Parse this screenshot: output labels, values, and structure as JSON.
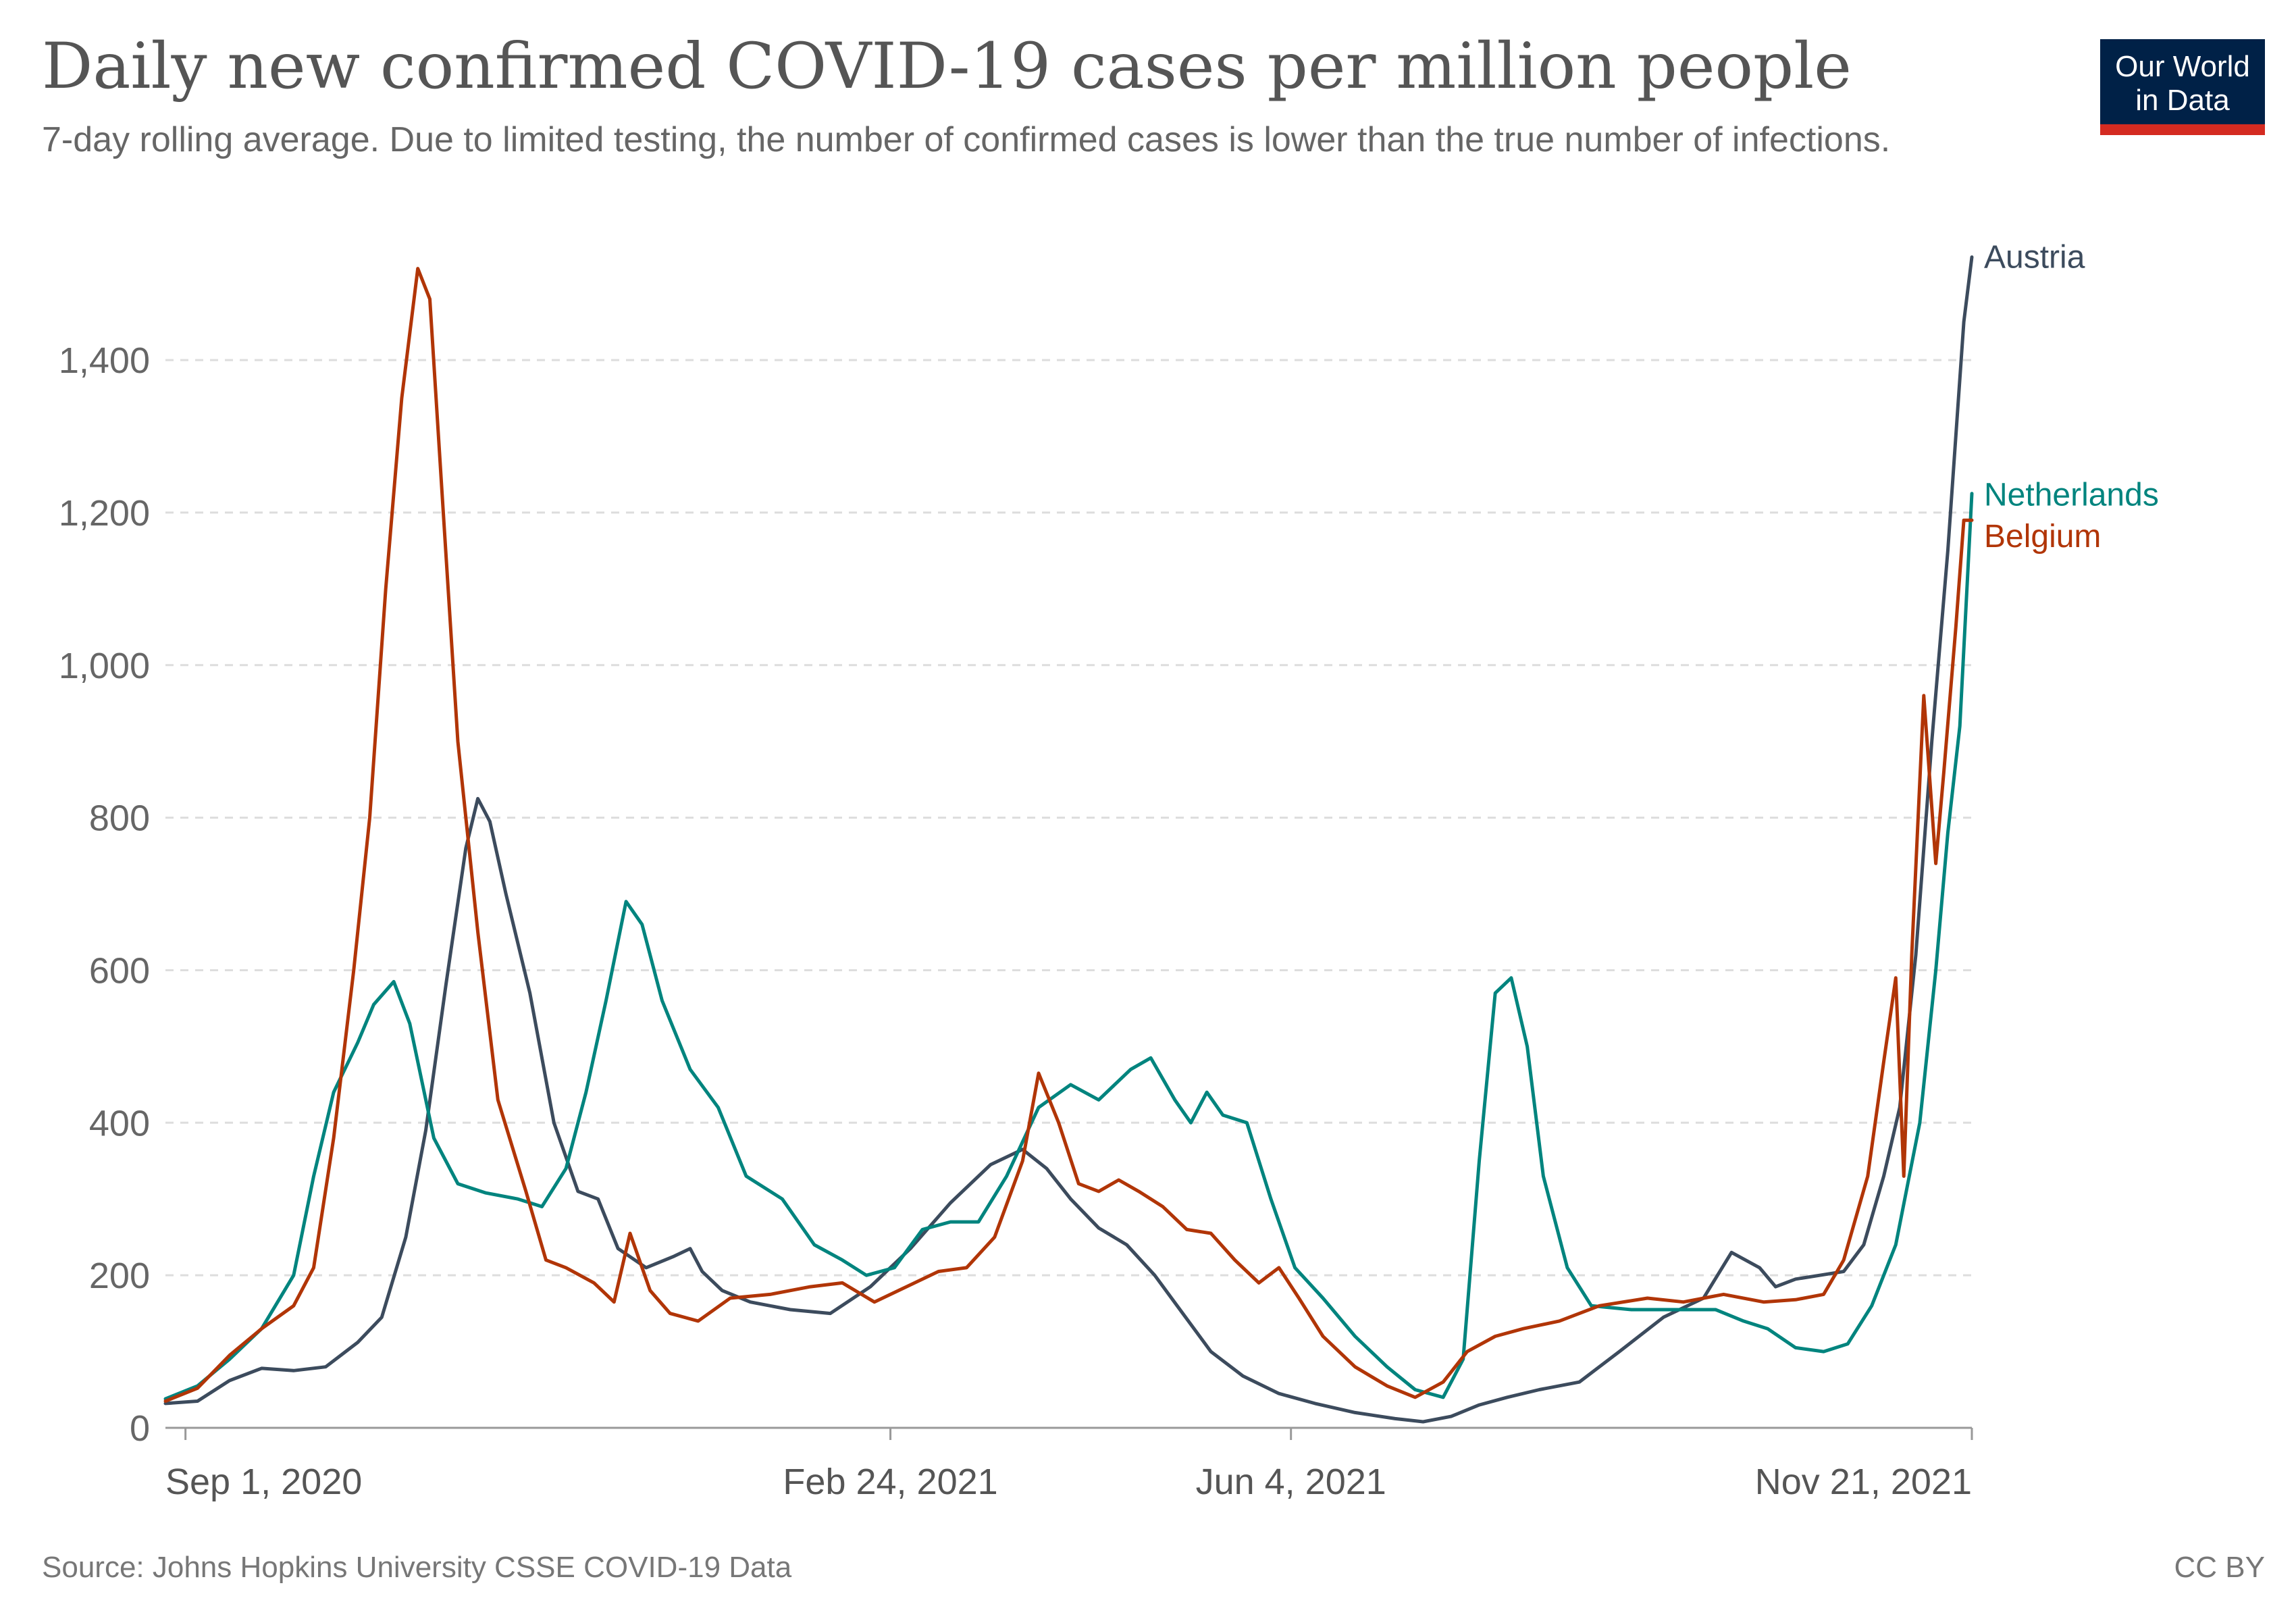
{
  "logo": {
    "line1": "Our World",
    "line2": "in Data"
  },
  "footer": {
    "source": "Source: Johns Hopkins University CSSE COVID-19 Data",
    "license": "CC BY"
  },
  "colors": {
    "Austria": "#3c4b5d",
    "Netherlands": "#00847e",
    "Belgium": "#b13507"
  },
  "chart_data": {
    "type": "line",
    "title": "Daily new confirmed COVID-19 cases per million people",
    "subtitle": "7-day rolling average. Due to limited testing, the number of confirmed cases is lower than the true number of infections.",
    "xlabel": "",
    "ylabel": "",
    "x_range": [
      "2020-08-27",
      "2021-11-21"
    ],
    "ylim": [
      0,
      1540
    ],
    "y_ticks": [
      0,
      200,
      400,
      600,
      800,
      1000,
      1200,
      1400
    ],
    "y_tick_labels": [
      "0",
      "200",
      "400",
      "600",
      "800",
      "1,000",
      "1,200",
      "1,400"
    ],
    "x_ticks": [
      {
        "date": "2020-09-01",
        "label": "Sep 1, 2020"
      },
      {
        "date": "2021-02-24",
        "label": "Feb 24, 2021"
      },
      {
        "date": "2021-06-04",
        "label": "Jun 4, 2021"
      },
      {
        "date": "2021-11-21",
        "label": "Nov 21, 2021"
      }
    ],
    "grid": true,
    "legend": "end-of-line labels",
    "series": [
      {
        "name": "Austria",
        "points": [
          [
            "2020-08-27",
            32
          ],
          [
            "2020-09-04",
            35
          ],
          [
            "2020-09-12",
            62
          ],
          [
            "2020-09-20",
            78
          ],
          [
            "2020-09-28",
            75
          ],
          [
            "2020-10-06",
            80
          ],
          [
            "2020-10-14",
            112
          ],
          [
            "2020-10-20",
            145
          ],
          [
            "2020-10-26",
            250
          ],
          [
            "2020-10-31",
            390
          ],
          [
            "2020-11-05",
            580
          ],
          [
            "2020-11-10",
            760
          ],
          [
            "2020-11-13",
            825
          ],
          [
            "2020-11-16",
            795
          ],
          [
            "2020-11-20",
            700
          ],
          [
            "2020-11-26",
            570
          ],
          [
            "2020-12-02",
            400
          ],
          [
            "2020-12-08",
            310
          ],
          [
            "2020-12-13",
            300
          ],
          [
            "2020-12-18",
            235
          ],
          [
            "2020-12-25",
            210
          ],
          [
            "2021-01-01",
            225
          ],
          [
            "2021-01-05",
            235
          ],
          [
            "2021-01-08",
            205
          ],
          [
            "2021-01-13",
            180
          ],
          [
            "2021-01-20",
            165
          ],
          [
            "2021-01-30",
            155
          ],
          [
            "2021-02-09",
            150
          ],
          [
            "2021-02-19",
            185
          ],
          [
            "2021-03-01",
            235
          ],
          [
            "2021-03-11",
            295
          ],
          [
            "2021-03-21",
            345
          ],
          [
            "2021-03-29",
            365
          ],
          [
            "2021-04-04",
            340
          ],
          [
            "2021-04-10",
            300
          ],
          [
            "2021-04-17",
            262
          ],
          [
            "2021-04-24",
            240
          ],
          [
            "2021-05-01",
            200
          ],
          [
            "2021-05-08",
            150
          ],
          [
            "2021-05-15",
            100
          ],
          [
            "2021-05-23",
            68
          ],
          [
            "2021-06-01",
            45
          ],
          [
            "2021-06-10",
            32
          ],
          [
            "2021-06-20",
            20
          ],
          [
            "2021-06-30",
            12
          ],
          [
            "2021-07-07",
            8
          ],
          [
            "2021-07-14",
            15
          ],
          [
            "2021-07-21",
            30
          ],
          [
            "2021-07-28",
            40
          ],
          [
            "2021-08-05",
            50
          ],
          [
            "2021-08-15",
            60
          ],
          [
            "2021-08-25",
            100
          ],
          [
            "2021-09-05",
            145
          ],
          [
            "2021-09-15",
            170
          ],
          [
            "2021-09-22",
            230
          ],
          [
            "2021-09-29",
            210
          ],
          [
            "2021-10-03",
            185
          ],
          [
            "2021-10-08",
            195
          ],
          [
            "2021-10-14",
            200
          ],
          [
            "2021-10-20",
            205
          ],
          [
            "2021-10-25",
            240
          ],
          [
            "2021-10-30",
            330
          ],
          [
            "2021-11-03",
            420
          ],
          [
            "2021-11-07",
            620
          ],
          [
            "2021-11-11",
            900
          ],
          [
            "2021-11-15",
            1150
          ],
          [
            "2021-11-19",
            1450
          ],
          [
            "2021-11-21",
            1535
          ]
        ]
      },
      {
        "name": "Netherlands",
        "points": [
          [
            "2020-08-27",
            38
          ],
          [
            "2020-09-04",
            55
          ],
          [
            "2020-09-12",
            90
          ],
          [
            "2020-09-20",
            130
          ],
          [
            "2020-09-28",
            200
          ],
          [
            "2020-10-03",
            330
          ],
          [
            "2020-10-08",
            440
          ],
          [
            "2020-10-14",
            505
          ],
          [
            "2020-10-18",
            555
          ],
          [
            "2020-10-23",
            585
          ],
          [
            "2020-10-27",
            530
          ],
          [
            "2020-11-02",
            380
          ],
          [
            "2020-11-08",
            320
          ],
          [
            "2020-11-15",
            308
          ],
          [
            "2020-11-23",
            300
          ],
          [
            "2020-11-29",
            290
          ],
          [
            "2020-12-05",
            340
          ],
          [
            "2020-12-10",
            440
          ],
          [
            "2020-12-15",
            560
          ],
          [
            "2020-12-20",
            690
          ],
          [
            "2020-12-24",
            660
          ],
          [
            "2020-12-29",
            560
          ],
          [
            "2021-01-05",
            470
          ],
          [
            "2021-01-12",
            420
          ],
          [
            "2021-01-19",
            330
          ],
          [
            "2021-01-28",
            300
          ],
          [
            "2021-02-05",
            240
          ],
          [
            "2021-02-12",
            220
          ],
          [
            "2021-02-18",
            200
          ],
          [
            "2021-02-25",
            210
          ],
          [
            "2021-03-04",
            260
          ],
          [
            "2021-03-11",
            270
          ],
          [
            "2021-03-18",
            270
          ],
          [
            "2021-03-25",
            330
          ],
          [
            "2021-04-02",
            420
          ],
          [
            "2021-04-10",
            450
          ],
          [
            "2021-04-17",
            430
          ],
          [
            "2021-04-25",
            470
          ],
          [
            "2021-04-30",
            485
          ],
          [
            "2021-05-06",
            430
          ],
          [
            "2021-05-10",
            400
          ],
          [
            "2021-05-14",
            440
          ],
          [
            "2021-05-18",
            410
          ],
          [
            "2021-05-24",
            400
          ],
          [
            "2021-05-30",
            300
          ],
          [
            "2021-06-05",
            210
          ],
          [
            "2021-06-12",
            170
          ],
          [
            "2021-06-20",
            120
          ],
          [
            "2021-06-28",
            80
          ],
          [
            "2021-07-05",
            50
          ],
          [
            "2021-07-12",
            40
          ],
          [
            "2021-07-17",
            90
          ],
          [
            "2021-07-21",
            350
          ],
          [
            "2021-07-25",
            570
          ],
          [
            "2021-07-29",
            590
          ],
          [
            "2021-08-02",
            500
          ],
          [
            "2021-08-06",
            330
          ],
          [
            "2021-08-12",
            210
          ],
          [
            "2021-08-18",
            160
          ],
          [
            "2021-08-28",
            155
          ],
          [
            "2021-09-08",
            155
          ],
          [
            "2021-09-18",
            155
          ],
          [
            "2021-09-25",
            140
          ],
          [
            "2021-10-01",
            130
          ],
          [
            "2021-10-08",
            105
          ],
          [
            "2021-10-15",
            100
          ],
          [
            "2021-10-21",
            110
          ],
          [
            "2021-10-27",
            160
          ],
          [
            "2021-11-02",
            240
          ],
          [
            "2021-11-08",
            400
          ],
          [
            "2021-11-12",
            600
          ],
          [
            "2021-11-15",
            780
          ],
          [
            "2021-11-18",
            920
          ],
          [
            "2021-11-21",
            1225
          ]
        ]
      },
      {
        "name": "Belgium",
        "points": [
          [
            "2020-08-27",
            35
          ],
          [
            "2020-09-04",
            52
          ],
          [
            "2020-09-12",
            95
          ],
          [
            "2020-09-20",
            130
          ],
          [
            "2020-09-28",
            160
          ],
          [
            "2020-10-03",
            210
          ],
          [
            "2020-10-08",
            380
          ],
          [
            "2020-10-13",
            600
          ],
          [
            "2020-10-17",
            800
          ],
          [
            "2020-10-21",
            1100
          ],
          [
            "2020-10-25",
            1350
          ],
          [
            "2020-10-29",
            1520
          ],
          [
            "2020-11-01",
            1480
          ],
          [
            "2020-11-04",
            1230
          ],
          [
            "2020-11-08",
            900
          ],
          [
            "2020-11-13",
            650
          ],
          [
            "2020-11-18",
            430
          ],
          [
            "2020-11-25",
            310
          ],
          [
            "2020-11-30",
            220
          ],
          [
            "2020-12-05",
            210
          ],
          [
            "2020-12-12",
            190
          ],
          [
            "2020-12-17",
            165
          ],
          [
            "2020-12-21",
            255
          ],
          [
            "2020-12-26",
            180
          ],
          [
            "2020-12-31",
            150
          ],
          [
            "2021-01-07",
            140
          ],
          [
            "2021-01-15",
            170
          ],
          [
            "2021-01-25",
            175
          ],
          [
            "2021-02-04",
            185
          ],
          [
            "2021-02-12",
            190
          ],
          [
            "2021-02-20",
            165
          ],
          [
            "2021-02-28",
            185
          ],
          [
            "2021-03-08",
            205
          ],
          [
            "2021-03-15",
            210
          ],
          [
            "2021-03-22",
            250
          ],
          [
            "2021-03-29",
            350
          ],
          [
            "2021-04-02",
            465
          ],
          [
            "2021-04-07",
            400
          ],
          [
            "2021-04-12",
            320
          ],
          [
            "2021-04-17",
            310
          ],
          [
            "2021-04-22",
            325
          ],
          [
            "2021-04-27",
            310
          ],
          [
            "2021-05-03",
            290
          ],
          [
            "2021-05-09",
            260
          ],
          [
            "2021-05-15",
            255
          ],
          [
            "2021-05-21",
            220
          ],
          [
            "2021-05-27",
            190
          ],
          [
            "2021-06-01",
            210
          ],
          [
            "2021-06-06",
            170
          ],
          [
            "2021-06-12",
            120
          ],
          [
            "2021-06-20",
            80
          ],
          [
            "2021-06-28",
            55
          ],
          [
            "2021-07-05",
            40
          ],
          [
            "2021-07-12",
            60
          ],
          [
            "2021-07-18",
            100
          ],
          [
            "2021-07-25",
            120
          ],
          [
            "2021-08-01",
            130
          ],
          [
            "2021-08-10",
            140
          ],
          [
            "2021-08-20",
            160
          ],
          [
            "2021-09-01",
            170
          ],
          [
            "2021-09-10",
            165
          ],
          [
            "2021-09-20",
            175
          ],
          [
            "2021-09-30",
            165
          ],
          [
            "2021-10-08",
            168
          ],
          [
            "2021-10-15",
            175
          ],
          [
            "2021-10-20",
            220
          ],
          [
            "2021-10-26",
            330
          ],
          [
            "2021-10-30",
            480
          ],
          [
            "2021-11-02",
            590
          ],
          [
            "2021-11-04",
            330
          ],
          [
            "2021-11-06",
            620
          ],
          [
            "2021-11-09",
            960
          ],
          [
            "2021-11-12",
            740
          ],
          [
            "2021-11-14",
            860
          ],
          [
            "2021-11-17",
            1050
          ],
          [
            "2021-11-19",
            1190
          ],
          [
            "2021-11-21",
            1190
          ]
        ]
      }
    ]
  }
}
